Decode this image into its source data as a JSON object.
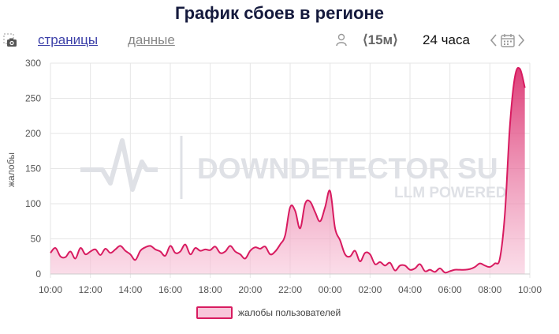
{
  "title": "График сбоев в регионе",
  "toolbar": {
    "tab_pages": "страницы",
    "tab_data": "данные",
    "interval": "⟨15м⟩",
    "range": "24 часа"
  },
  "icons": {
    "camera": "camera-icon",
    "user": "user-icon",
    "prev": "chevron-left-icon",
    "calendar": "calendar-icon",
    "next": "chevron-right-icon"
  },
  "watermark": {
    "brand": "DOWNDETECTOR SU",
    "sub": "LLM POWERED"
  },
  "colors": {
    "line": "#d81b60",
    "fill_top": "#d81b60",
    "fill_bottom": "#f8c6da",
    "grid": "#e6e6e6",
    "title": "#151a3d"
  },
  "chart_data": {
    "type": "area",
    "title": "График сбоев в регионе",
    "xlabel": "",
    "ylabel": "жалобы",
    "ylim": [
      0,
      300
    ],
    "yticks": [
      0,
      50,
      100,
      150,
      200,
      250,
      300
    ],
    "xticks": [
      "10:00",
      "12:00",
      "14:00",
      "16:00",
      "18:00",
      "20:00",
      "22:00",
      "00:00",
      "02:00",
      "04:00",
      "06:00",
      "08:00",
      "10:00"
    ],
    "x_start": "10:00",
    "x_step_minutes": 15,
    "grid": true,
    "legend_position": "bottom",
    "series": [
      {
        "name": "жалобы пользователей",
        "values": [
          30,
          37,
          25,
          24,
          32,
          22,
          37,
          28,
          32,
          35,
          27,
          36,
          30,
          35,
          40,
          33,
          28,
          20,
          33,
          38,
          40,
          35,
          32,
          26,
          40,
          30,
          32,
          42,
          28,
          37,
          33,
          35,
          34,
          39,
          30,
          32,
          40,
          32,
          28,
          22,
          33,
          38,
          36,
          39,
          28,
          32,
          42,
          55,
          95,
          90,
          65,
          100,
          103,
          88,
          75,
          95,
          118,
          65,
          48,
          28,
          25,
          33,
          18,
          30,
          28,
          14,
          17,
          12,
          16,
          5,
          12,
          12,
          6,
          8,
          14,
          4,
          6,
          3,
          8,
          2,
          4,
          6,
          6,
          6,
          7,
          10,
          15,
          12,
          10,
          15,
          22,
          85,
          210,
          280,
          292,
          265
        ]
      }
    ]
  }
}
